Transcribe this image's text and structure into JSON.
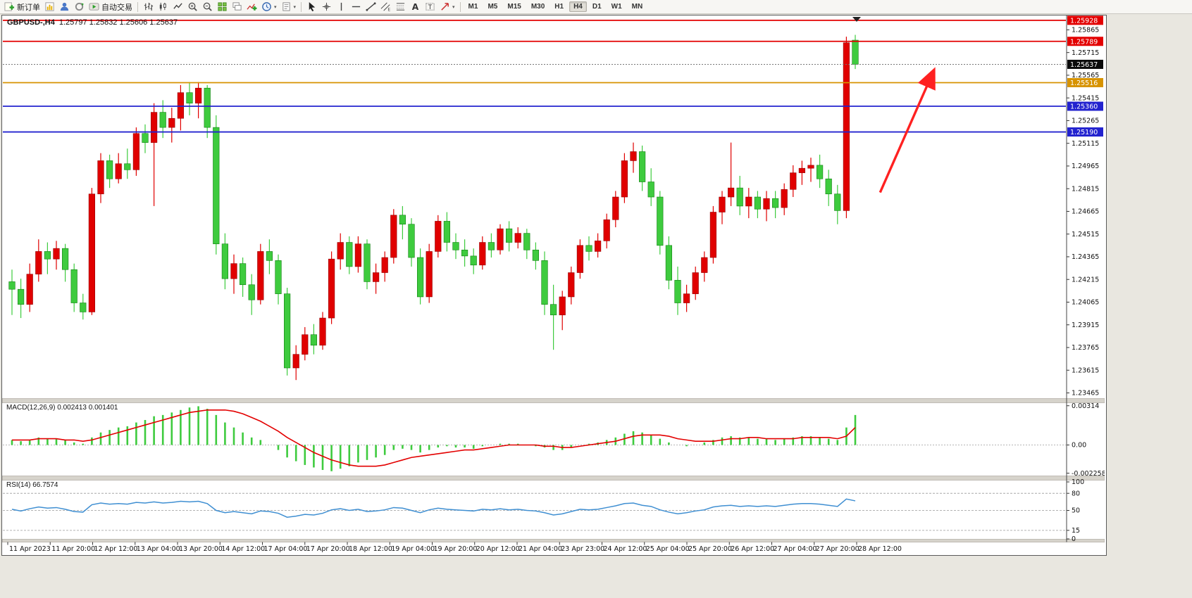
{
  "toolbar": {
    "groups": [
      {
        "name": "trade-group",
        "items": [
          {
            "name": "new-order-button",
            "icon": "new-order",
            "label": "新订单"
          },
          {
            "name": "new-chart-button",
            "icon": "chart-doc"
          },
          {
            "name": "profiles-button",
            "icon": "profile"
          },
          {
            "name": "refresh-button",
            "icon": "refresh"
          },
          {
            "name": "autotrading-button",
            "icon": "autotrade",
            "label": "自动交易"
          }
        ]
      },
      {
        "name": "chart-type-group",
        "items": [
          {
            "name": "ohlc-bars-button",
            "icon": "ohlc"
          },
          {
            "name": "candlestick-button",
            "icon": "candles"
          },
          {
            "name": "line-chart-button",
            "icon": "linechart"
          },
          {
            "name": "zoom-in-button",
            "icon": "zoom-in"
          },
          {
            "name": "zoom-out-button",
            "icon": "zoom-out"
          },
          {
            "name": "tile-windows-button",
            "icon": "tile"
          },
          {
            "name": "cascade-windows-button",
            "icon": "cascade"
          },
          {
            "name": "indicators-button",
            "icon": "indicator-add"
          },
          {
            "name": "periods-button",
            "icon": "clock",
            "caret": true
          },
          {
            "name": "templates-button",
            "icon": "template",
            "caret": true
          }
        ]
      },
      {
        "name": "drawing-group",
        "items": [
          {
            "name": "cursor-button",
            "icon": "cursor"
          },
          {
            "name": "crosshair-button",
            "icon": "crosshair"
          },
          {
            "name": "vertical-line-button",
            "icon": "vline"
          },
          {
            "name": "horizontal-line-button",
            "icon": "hline"
          },
          {
            "name": "trendline-button",
            "icon": "trendline"
          },
          {
            "name": "equidistant-channel-button",
            "icon": "channel"
          },
          {
            "name": "fibonacci-button",
            "icon": "fibo"
          },
          {
            "name": "text-button",
            "icon": "text-a"
          },
          {
            "name": "text-label-button",
            "icon": "label"
          },
          {
            "name": "arrows-button",
            "icon": "arrow-shape",
            "caret": true
          }
        ]
      }
    ],
    "timeframes": [
      "M1",
      "M5",
      "M15",
      "M30",
      "H1",
      "H4",
      "D1",
      "W1",
      "MN"
    ],
    "active_timeframe": "H4",
    "notification_count": "1"
  },
  "chart": {
    "main_title": "GBPUSD-,H4",
    "ohlc_values": "1.25797 1.25832 1.25606 1.25637",
    "macd_title": "MACD(12,26,9) 0.002413 0.001401",
    "rsi_title": "RSI(14) 66.7574",
    "price_axis_labels": [
      "1.25865",
      "1.25715",
      "1.25565",
      "1.25415",
      "1.25265",
      "1.25115",
      "1.24965",
      "1.24815",
      "1.24665",
      "1.24515",
      "1.24365",
      "1.24215",
      "1.24065",
      "1.23915",
      "1.23765",
      "1.23615",
      "1.23465"
    ],
    "price_badges": [
      {
        "text": "1.25928",
        "color": "#e30000"
      },
      {
        "text": "1.25789",
        "color": "#e30000"
      },
      {
        "text": "1.25637",
        "color": "#0a0a0a"
      },
      {
        "text": "1.25516",
        "color": "#d79300"
      },
      {
        "text": "1.25360",
        "color": "#2323cf"
      },
      {
        "text": "1.25190",
        "color": "#2323cf"
      }
    ],
    "macd_axis_labels": [
      "0.00314",
      "0.00",
      "-0.002258"
    ],
    "rsi_axis_labels": [
      "100",
      "80",
      "50",
      "15",
      "0"
    ],
    "time_axis_labels": [
      "11 Apr 2023",
      "11 Apr 20:00",
      "12 Apr 12:00",
      "13 Apr 04:00",
      "13 Apr 20:00",
      "14 Apr 12:00",
      "17 Apr 04:00",
      "17 Apr 20:00",
      "18 Apr 12:00",
      "19 Apr 04:00",
      "19 Apr 20:00",
      "20 Apr 12:00",
      "21 Apr 04:00",
      "23 Apr 23:00",
      "24 Apr 12:00",
      "25 Apr 04:00",
      "25 Apr 20:00",
      "26 Apr 12:00",
      "27 Apr 04:00",
      "27 Apr 20:00",
      "28 Apr 12:00"
    ]
  },
  "chart_data": {
    "type": "candlestick",
    "symbol": "GBPUSD-",
    "timeframe": "H4",
    "bull_color": "#e00000",
    "bear_color": "#3ecb3e",
    "price_range": [
      1.2343,
      1.2596
    ],
    "candles_ohlc": [
      [
        1.242,
        1.2428,
        1.2398,
        1.2415
      ],
      [
        1.2415,
        1.2422,
        1.2396,
        1.2405
      ],
      [
        1.2405,
        1.2432,
        1.24,
        1.2425
      ],
      [
        1.2425,
        1.2448,
        1.242,
        1.244
      ],
      [
        1.244,
        1.2446,
        1.2425,
        1.2435
      ],
      [
        1.2435,
        1.2447,
        1.2428,
        1.2442
      ],
      [
        1.2442,
        1.2445,
        1.242,
        1.2428
      ],
      [
        1.2428,
        1.2432,
        1.24,
        1.2406
      ],
      [
        1.2406,
        1.2412,
        1.2395,
        1.24
      ],
      [
        1.24,
        1.2482,
        1.2398,
        1.2478
      ],
      [
        1.2478,
        1.2505,
        1.2472,
        1.25
      ],
      [
        1.25,
        1.2504,
        1.2482,
        1.2488
      ],
      [
        1.2488,
        1.2505,
        1.2485,
        1.2498
      ],
      [
        1.2498,
        1.2508,
        1.2488,
        1.2494
      ],
      [
        1.2494,
        1.2522,
        1.249,
        1.2518
      ],
      [
        1.2518,
        1.2524,
        1.2505,
        1.2512
      ],
      [
        1.2512,
        1.2538,
        1.247,
        1.2532
      ],
      [
        1.2532,
        1.254,
        1.2515,
        1.2522
      ],
      [
        1.2522,
        1.2535,
        1.2512,
        1.2528
      ],
      [
        1.2528,
        1.255,
        1.252,
        1.2545
      ],
      [
        1.2545,
        1.2552,
        1.253,
        1.2538
      ],
      [
        1.2538,
        1.2552,
        1.2528,
        1.2548
      ],
      [
        1.2548,
        1.255,
        1.2515,
        1.2522
      ],
      [
        1.2522,
        1.253,
        1.2438,
        1.2445
      ],
      [
        1.2445,
        1.2452,
        1.2415,
        1.2422
      ],
      [
        1.2422,
        1.2438,
        1.2412,
        1.2432
      ],
      [
        1.2432,
        1.2436,
        1.241,
        1.2418
      ],
      [
        1.2418,
        1.2425,
        1.2398,
        1.2408
      ],
      [
        1.2408,
        1.2445,
        1.2405,
        1.244
      ],
      [
        1.244,
        1.2448,
        1.2425,
        1.2434
      ],
      [
        1.2434,
        1.2438,
        1.2405,
        1.2412
      ],
      [
        1.2412,
        1.2416,
        1.2358,
        1.2363
      ],
      [
        1.2363,
        1.2378,
        1.2355,
        1.2372
      ],
      [
        1.2372,
        1.239,
        1.2368,
        1.2385
      ],
      [
        1.2385,
        1.2392,
        1.2372,
        1.2378
      ],
      [
        1.2378,
        1.24,
        1.2375,
        1.2396
      ],
      [
        1.2396,
        1.244,
        1.2392,
        1.2435
      ],
      [
        1.2435,
        1.2452,
        1.2428,
        1.2446
      ],
      [
        1.2446,
        1.245,
        1.2425,
        1.243
      ],
      [
        1.243,
        1.245,
        1.2426,
        1.2445
      ],
      [
        1.2445,
        1.2448,
        1.2415,
        1.242
      ],
      [
        1.242,
        1.2432,
        1.2412,
        1.2426
      ],
      [
        1.2426,
        1.244,
        1.242,
        1.2436
      ],
      [
        1.2436,
        1.2468,
        1.2432,
        1.2464
      ],
      [
        1.2464,
        1.247,
        1.2448,
        1.2458
      ],
      [
        1.2458,
        1.2462,
        1.243,
        1.2436
      ],
      [
        1.2436,
        1.2442,
        1.2405,
        1.241
      ],
      [
        1.241,
        1.2445,
        1.2406,
        1.244
      ],
      [
        1.244,
        1.2464,
        1.2436,
        1.246
      ],
      [
        1.246,
        1.2466,
        1.244,
        1.2446
      ],
      [
        1.2446,
        1.2452,
        1.2435,
        1.2441
      ],
      [
        1.2441,
        1.2448,
        1.243,
        1.2437
      ],
      [
        1.2437,
        1.2442,
        1.2425,
        1.2431
      ],
      [
        1.2431,
        1.245,
        1.2428,
        1.2446
      ],
      [
        1.2446,
        1.2452,
        1.2436,
        1.2441
      ],
      [
        1.2441,
        1.2458,
        1.2438,
        1.2455
      ],
      [
        1.2455,
        1.246,
        1.244,
        1.2446
      ],
      [
        1.2446,
        1.2456,
        1.2442,
        1.2452
      ],
      [
        1.2452,
        1.2455,
        1.2435,
        1.2441
      ],
      [
        1.2441,
        1.2446,
        1.2428,
        1.2434
      ],
      [
        1.2434,
        1.244,
        1.2398,
        1.2405
      ],
      [
        1.2405,
        1.2418,
        1.2375,
        1.2398
      ],
      [
        1.2398,
        1.2414,
        1.2388,
        1.241
      ],
      [
        1.241,
        1.243,
        1.2405,
        1.2426
      ],
      [
        1.2426,
        1.2448,
        1.2422,
        1.2444
      ],
      [
        1.2444,
        1.245,
        1.2434,
        1.244
      ],
      [
        1.244,
        1.2452,
        1.2436,
        1.2447
      ],
      [
        1.2447,
        1.2465,
        1.2442,
        1.2461
      ],
      [
        1.2461,
        1.248,
        1.2456,
        1.2476
      ],
      [
        1.2476,
        1.2505,
        1.2472,
        1.25
      ],
      [
        1.25,
        1.2512,
        1.2492,
        1.2506
      ],
      [
        1.2506,
        1.251,
        1.248,
        1.2486
      ],
      [
        1.2486,
        1.2495,
        1.247,
        1.2476
      ],
      [
        1.2476,
        1.248,
        1.2438,
        1.2444
      ],
      [
        1.2444,
        1.245,
        1.2415,
        1.2421
      ],
      [
        1.2421,
        1.243,
        1.2398,
        1.2406
      ],
      [
        1.2406,
        1.2418,
        1.24,
        1.2412
      ],
      [
        1.2412,
        1.243,
        1.2408,
        1.2426
      ],
      [
        1.2426,
        1.244,
        1.242,
        1.2436
      ],
      [
        1.2436,
        1.247,
        1.2432,
        1.2466
      ],
      [
        1.2466,
        1.248,
        1.2458,
        1.2476
      ],
      [
        1.2476,
        1.2512,
        1.247,
        1.2482
      ],
      [
        1.2482,
        1.249,
        1.2464,
        1.247
      ],
      [
        1.247,
        1.2482,
        1.2462,
        1.2476
      ],
      [
        1.2476,
        1.248,
        1.2462,
        1.2468
      ],
      [
        1.2468,
        1.248,
        1.246,
        1.2475
      ],
      [
        1.2475,
        1.248,
        1.2462,
        1.2469
      ],
      [
        1.2469,
        1.2485,
        1.2464,
        1.2481
      ],
      [
        1.2481,
        1.2497,
        1.2476,
        1.2492
      ],
      [
        1.2492,
        1.25,
        1.2484,
        1.2495
      ],
      [
        1.2495,
        1.2502,
        1.2486,
        1.2497
      ],
      [
        1.2497,
        1.2504,
        1.2482,
        1.2488
      ],
      [
        1.2488,
        1.2494,
        1.247,
        1.2478
      ],
      [
        1.2478,
        1.2484,
        1.2458,
        1.2467
      ],
      [
        1.2467,
        1.2582,
        1.2462,
        1.2578
      ],
      [
        1.25797,
        1.25832,
        1.25606,
        1.25637
      ]
    ],
    "hlines": [
      {
        "price": 1.25928,
        "color": "#e30000"
      },
      {
        "price": 1.25789,
        "color": "#e30000"
      },
      {
        "price": 1.25516,
        "color": "#d79300"
      },
      {
        "price": 1.2536,
        "color": "#2323cf"
      },
      {
        "price": 1.2519,
        "color": "#2323cf"
      }
    ],
    "current_price": 1.25637,
    "macd": {
      "params": "12,26,9",
      "value": 0.002413,
      "signal_value": 0.001401,
      "hist_color": "#3ecb3e",
      "signal_color": "#e30000",
      "range": [
        -0.002258,
        0.00314
      ],
      "histogram": [
        0.0004,
        0.0003,
        0.0004,
        0.0006,
        0.0005,
        0.0005,
        0.0004,
        0.0002,
        0.0001,
        0.0006,
        0.001,
        0.0012,
        0.0014,
        0.0015,
        0.0018,
        0.002,
        0.0023,
        0.0024,
        0.0026,
        0.0028,
        0.003,
        0.0031,
        0.0029,
        0.0024,
        0.0018,
        0.0014,
        0.001,
        0.0006,
        0.0004,
        0.0,
        -0.0004,
        -0.001,
        -0.0013,
        -0.0016,
        -0.0018,
        -0.002,
        -0.0021,
        -0.0019,
        -0.0017,
        -0.0014,
        -0.0012,
        -0.001,
        -0.0008,
        -0.0004,
        -0.0003,
        -0.0004,
        -0.0006,
        -0.0004,
        -0.0002,
        -0.0001,
        -0.0002,
        -0.0002,
        -0.0003,
        -0.0001,
        0.0,
        0.0001,
        0.0001,
        0.0001,
        0.0,
        -0.0001,
        -0.0002,
        -0.0004,
        -0.0004,
        -0.0002,
        0.0,
        0.0001,
        0.0002,
        0.0004,
        0.0006,
        0.0009,
        0.0011,
        0.001,
        0.0008,
        0.0005,
        0.0002,
        0.0,
        -0.0001,
        0.0,
        0.0002,
        0.0004,
        0.0006,
        0.0007,
        0.0006,
        0.0006,
        0.0005,
        0.0005,
        0.0004,
        0.0005,
        0.0006,
        0.0007,
        0.0007,
        0.0006,
        0.0005,
        0.0004,
        0.0014,
        0.0024
      ],
      "signal": [
        0.0004,
        0.0004,
        0.0004,
        0.0005,
        0.0005,
        0.0005,
        0.0004,
        0.0004,
        0.0003,
        0.0004,
        0.0006,
        0.0008,
        0.001,
        0.0012,
        0.0014,
        0.0016,
        0.0018,
        0.002,
        0.0022,
        0.0024,
        0.0026,
        0.0027,
        0.0028,
        0.0028,
        0.0028,
        0.0027,
        0.0025,
        0.0022,
        0.0019,
        0.0015,
        0.0011,
        0.0006,
        0.0002,
        -0.0002,
        -0.0006,
        -0.0009,
        -0.0012,
        -0.0014,
        -0.0016,
        -0.0017,
        -0.0017,
        -0.0017,
        -0.0016,
        -0.0014,
        -0.0012,
        -0.001,
        -0.0009,
        -0.0008,
        -0.0007,
        -0.0006,
        -0.0005,
        -0.0004,
        -0.0004,
        -0.0003,
        -0.0002,
        -0.0001,
        0.0,
        0.0,
        0.0,
        0.0,
        -0.0001,
        -0.0001,
        -0.0002,
        -0.0002,
        -0.0001,
        0.0,
        0.0001,
        0.0002,
        0.0003,
        0.0005,
        0.0007,
        0.0008,
        0.0008,
        0.0008,
        0.0007,
        0.0005,
        0.0004,
        0.0003,
        0.0003,
        0.0003,
        0.0004,
        0.0005,
        0.0005,
        0.0006,
        0.0006,
        0.0005,
        0.0005,
        0.0005,
        0.0005,
        0.0006,
        0.0006,
        0.0006,
        0.0006,
        0.0005,
        0.0007,
        0.0014
      ]
    },
    "rsi": {
      "period": 14,
      "value": 66.7574,
      "color": "#3f8fd2",
      "levels": [
        80,
        50,
        15
      ],
      "range": [
        0,
        100
      ],
      "values": [
        52,
        49,
        53,
        56,
        54,
        55,
        52,
        48,
        47,
        60,
        63,
        61,
        62,
        61,
        64,
        63,
        65,
        63,
        64,
        66,
        65,
        66,
        62,
        50,
        46,
        48,
        46,
        44,
        49,
        48,
        45,
        38,
        40,
        43,
        42,
        45,
        51,
        53,
        50,
        52,
        48,
        49,
        51,
        55,
        54,
        50,
        46,
        51,
        54,
        52,
        51,
        50,
        49,
        52,
        51,
        53,
        51,
        52,
        50,
        49,
        46,
        42,
        44,
        48,
        52,
        51,
        52,
        55,
        58,
        62,
        63,
        59,
        57,
        51,
        47,
        44,
        46,
        49,
        51,
        56,
        58,
        59,
        57,
        58,
        57,
        58,
        57,
        59,
        61,
        62,
        62,
        61,
        59,
        57,
        70,
        66.76
      ]
    },
    "annotation_arrow": {
      "color": "#ff2121",
      "from": {
        "index": 97.8,
        "price": 1.2479
      },
      "to": {
        "index": 103.8,
        "price": 1.2559
      }
    }
  }
}
